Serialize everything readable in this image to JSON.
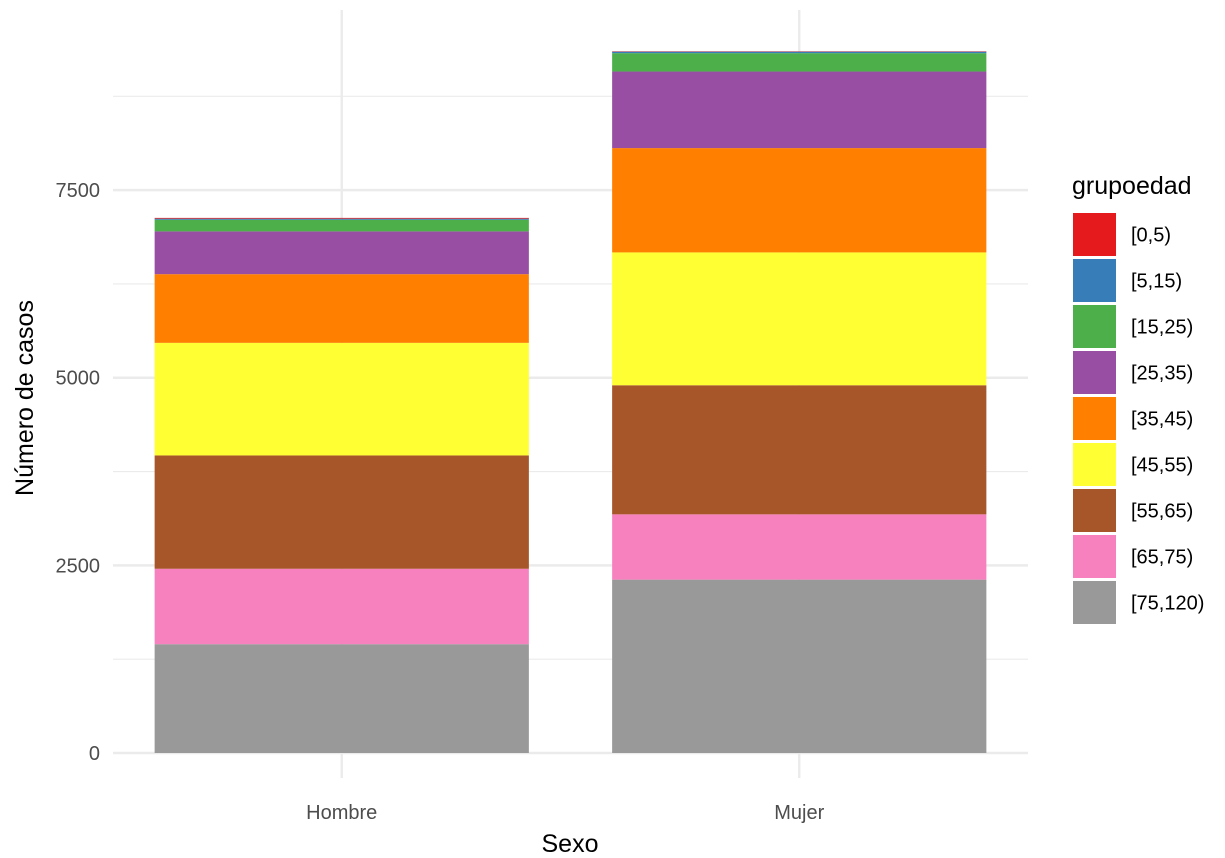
{
  "chart_data": {
    "type": "bar",
    "stacked": true,
    "xlabel": "Sexo",
    "ylabel": "Número de casos",
    "ylim": [
      0,
      9900
    ],
    "yticks": [
      0,
      2500,
      5000,
      7500
    ],
    "categories": [
      "Hombre",
      "Mujer"
    ],
    "legend_title": "grupoedad",
    "legend_position": "right",
    "grid": true,
    "series": [
      {
        "name": "[0,5)",
        "color": "#E41A1C",
        "values": [
          10,
          5
        ]
      },
      {
        "name": "[5,15)",
        "color": "#377EB8",
        "values": [
          15,
          20
        ]
      },
      {
        "name": "[15,25)",
        "color": "#4DAF4A",
        "values": [
          155,
          245
        ]
      },
      {
        "name": "[25,35)",
        "color": "#984EA3",
        "values": [
          570,
          1020
        ]
      },
      {
        "name": "[35,45)",
        "color": "#FF7F00",
        "values": [
          915,
          1390
        ]
      },
      {
        "name": "[45,55)",
        "color": "#FFFF33",
        "values": [
          1500,
          1770
        ]
      },
      {
        "name": "[55,65)",
        "color": "#A65628",
        "values": [
          1510,
          1720
        ]
      },
      {
        "name": "[65,75)",
        "color": "#F781BF",
        "values": [
          1005,
          870
        ]
      },
      {
        "name": "[75,120)",
        "color": "#999999",
        "values": [
          1450,
          2310
        ]
      }
    ]
  }
}
